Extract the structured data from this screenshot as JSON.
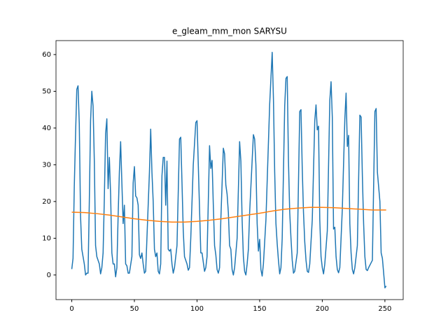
{
  "chart_data": {
    "type": "line",
    "title": "e_gleam_mm_mon SARYSU",
    "xlim": [
      -12.6,
      264.6
    ],
    "ylim": [
      -6.7,
      63.8
    ],
    "xticks": [
      0,
      50,
      100,
      150,
      200,
      250
    ],
    "yticks": [
      0,
      10,
      20,
      30,
      40,
      50,
      60
    ],
    "series": [
      {
        "color": "#1f77b4",
        "x": [
          0,
          1,
          2,
          3,
          4,
          5,
          6,
          7,
          8,
          9,
          10,
          11,
          12,
          13,
          14,
          15,
          16,
          17,
          18,
          19,
          20,
          22,
          23,
          24,
          25,
          26,
          27,
          28,
          29,
          30,
          31,
          32,
          33,
          34,
          35,
          36,
          37,
          38,
          39,
          40,
          41,
          42,
          43,
          44,
          45,
          46,
          48,
          49,
          50,
          51,
          52,
          53,
          54,
          55,
          56,
          57,
          58,
          59,
          60,
          62,
          63,
          64,
          65,
          66,
          67,
          68,
          69,
          70,
          71,
          72,
          73,
          74,
          75,
          76,
          77,
          78,
          79,
          80,
          81,
          82,
          84,
          86,
          87,
          88,
          89,
          90,
          92,
          93,
          94,
          95,
          97,
          99,
          100,
          101,
          102,
          103,
          104,
          106,
          107,
          108,
          109,
          110,
          111,
          112,
          113,
          114,
          115,
          116,
          117,
          118,
          119,
          121,
          122,
          123,
          124,
          125,
          126,
          127,
          128,
          129,
          130,
          132,
          134,
          135,
          136,
          137,
          138,
          139,
          140,
          141,
          142,
          145,
          146,
          147,
          148,
          149,
          150,
          151,
          152,
          153,
          155,
          158,
          160,
          161,
          162,
          163,
          164,
          165,
          166,
          167,
          168,
          170,
          171,
          172,
          173,
          174,
          175,
          176,
          177,
          178,
          180,
          182,
          183,
          184,
          185,
          186,
          187,
          188,
          189,
          190,
          192,
          194,
          195,
          196,
          197,
          198,
          199,
          200,
          201,
          202,
          204,
          206,
          207,
          208,
          209,
          210,
          211,
          212,
          213,
          214,
          216,
          218,
          219,
          220,
          221,
          222,
          223,
          224,
          225,
          226,
          228,
          230,
          231,
          232,
          233,
          234,
          235,
          236,
          237,
          240,
          242,
          243,
          244,
          246,
          247,
          248,
          250,
          251
        ],
        "values": [
          1.6,
          4.5,
          24,
          38,
          50.5,
          51.5,
          41,
          16,
          7,
          5,
          3,
          0,
          0.5,
          0.5,
          20,
          42,
          50,
          46,
          31,
          8,
          5,
          3,
          0.3,
          2,
          6,
          21,
          38.5,
          42.5,
          23.5,
          32,
          22,
          6,
          3,
          3,
          -0.5,
          2,
          16,
          28,
          36.3,
          25,
          14,
          19,
          3,
          2.5,
          0.5,
          0.5,
          5,
          25,
          29.5,
          21.5,
          21,
          19,
          5.5,
          4.5,
          6,
          3,
          0.5,
          1,
          10,
          28,
          39.7,
          28,
          20,
          7,
          5,
          6,
          1,
          0.3,
          3,
          27,
          32,
          32,
          19,
          31,
          7,
          6.5,
          7,
          3,
          0.5,
          2,
          8,
          37,
          37.5,
          25,
          12,
          5,
          3,
          1.3,
          2,
          10,
          30,
          41.5,
          42,
          30,
          18,
          6,
          6,
          1,
          2,
          5,
          20,
          35.2,
          29,
          31.2,
          19,
          8,
          5.5,
          1.5,
          0.5,
          2,
          15,
          34.5,
          33,
          24.5,
          22,
          17,
          8,
          7,
          1.5,
          0,
          2,
          10,
          36.3,
          31,
          15,
          5,
          1,
          0,
          3,
          7,
          17,
          38.2,
          37,
          30,
          14,
          6.5,
          9.7,
          1.5,
          -0.3,
          3,
          15,
          46.5,
          60.6,
          48,
          28,
          14,
          8.5,
          4,
          0.3,
          2,
          10,
          46,
          53.5,
          54,
          31,
          17,
          10,
          4,
          0.5,
          1,
          6,
          44.5,
          45,
          29,
          17,
          9,
          4,
          1,
          0.7,
          3,
          15,
          42,
          46.3,
          39.5,
          40.5,
          15,
          5,
          2,
          0.3,
          3,
          12,
          47.5,
          52.6,
          43,
          12.5,
          13,
          5,
          1.5,
          0.6,
          2,
          18,
          42.5,
          49.5,
          35,
          38,
          14,
          6,
          1.5,
          0.3,
          2,
          8,
          43.5,
          43,
          27,
          14,
          5,
          1.5,
          1.2,
          2,
          4,
          44.5,
          45.3,
          28,
          20,
          6,
          4.5,
          -3.5,
          -3
        ]
      },
      {
        "color": "#ff7f0e",
        "x": [
          0,
          10,
          20,
          30,
          40,
          50,
          60,
          70,
          80,
          90,
          100,
          110,
          120,
          130,
          140,
          150,
          160,
          170,
          180,
          190,
          200,
          210,
          220,
          230,
          240,
          251
        ],
        "values": [
          17.1,
          17.0,
          16.7,
          16.3,
          15.8,
          15.3,
          14.9,
          14.6,
          14.4,
          14.4,
          14.6,
          14.9,
          15.3,
          15.8,
          16.3,
          16.8,
          17.4,
          17.9,
          18.2,
          18.4,
          18.4,
          18.3,
          18.1,
          17.9,
          17.7,
          17.7
        ]
      }
    ]
  }
}
